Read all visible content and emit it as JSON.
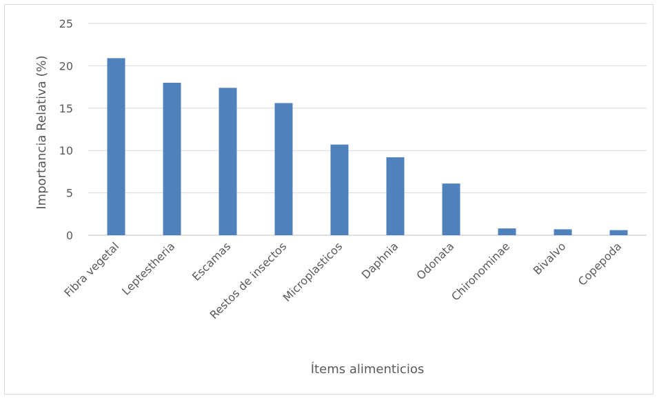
{
  "chart_data": {
    "type": "bar",
    "title": "",
    "xlabel": "Ítems alimenticios",
    "ylabel": "Importancia Relativa (%)",
    "ylim": [
      0,
      25
    ],
    "yticks": [
      0,
      5,
      10,
      15,
      20,
      25
    ],
    "grid": true,
    "legend": "none",
    "categories": [
      "Fibra vegetal",
      "Leptestheria",
      "Escamas",
      "Restos de insectos",
      "Microplasticos",
      "Daphnia",
      "Odonata",
      "Chironominae",
      "Bivalvo",
      "Copepoda"
    ],
    "series": [
      {
        "values": [
          20.9,
          18.0,
          17.4,
          15.6,
          10.7,
          9.2,
          6.1,
          0.8,
          0.7,
          0.6
        ],
        "color": "#4F81BD"
      }
    ]
  }
}
